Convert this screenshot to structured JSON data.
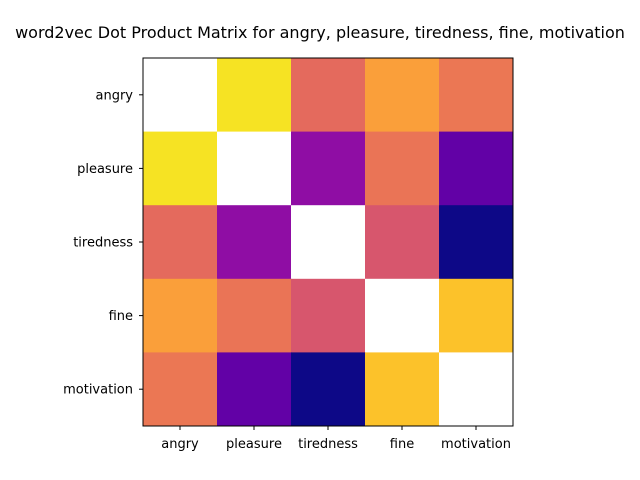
{
  "chart_data": {
    "type": "heatmap",
    "title": "word2vec Dot Product Matrix for angry, pleasure, tiredness, fine, motivation",
    "xlabel": "",
    "ylabel": "",
    "x_categories": [
      "angry",
      "pleasure",
      "tiredness",
      "fine",
      "motivation"
    ],
    "y_categories": [
      "angry",
      "pleasure",
      "tiredness",
      "fine",
      "motivation"
    ],
    "colormap": "plasma",
    "diagonal_masked": true,
    "grid": false,
    "values": [
      [
        null,
        0.95,
        0.62,
        0.78,
        0.66
      ],
      [
        0.95,
        null,
        0.3,
        0.65,
        0.18
      ],
      [
        0.62,
        0.3,
        null,
        0.55,
        0.0
      ],
      [
        0.78,
        0.65,
        0.55,
        null,
        0.87
      ],
      [
        0.66,
        0.18,
        0.0,
        0.87,
        null
      ]
    ],
    "value_range": [
      0,
      1
    ],
    "colors": {
      "masked_cell": "#ffffff",
      "frame": "#000000"
    }
  }
}
